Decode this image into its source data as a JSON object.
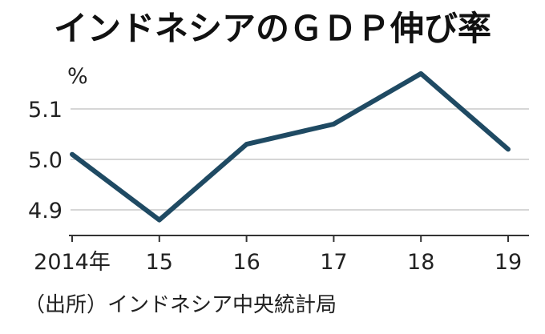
{
  "chart_data": {
    "type": "line",
    "title": "インドネシアのＧＤＰ伸び率",
    "ylabel": "%",
    "x": [
      "2014年",
      "15",
      "16",
      "17",
      "18",
      "19"
    ],
    "series": [
      {
        "values": [
          5.01,
          4.88,
          5.03,
          5.07,
          5.17,
          5.02
        ]
      }
    ],
    "yticks": [
      "4.9",
      "5.0",
      "5.1"
    ],
    "ytick_values": [
      4.9,
      5.0,
      5.1
    ],
    "ylim": [
      4.85,
      5.2
    ],
    "grid": true,
    "source": "（出所）インドネシア中央統計局",
    "colors": {
      "series": "#1f4a63",
      "grid": "#c8c8c8"
    }
  }
}
